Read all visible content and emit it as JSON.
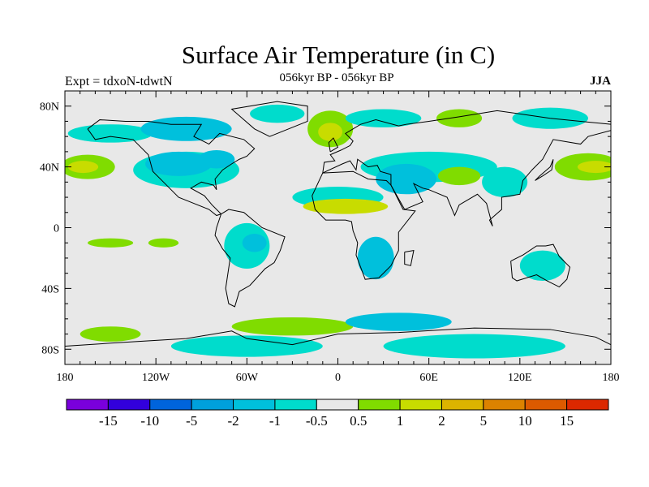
{
  "title": "Surface Air Temperature (in C)",
  "subtitle": "056kyr BP - 056kyr BP",
  "experiment": "Expt = tdxoN-tdwtN",
  "season": "JJA",
  "axes": {
    "lat_ticks": [
      {
        "v": 80,
        "label": "80N"
      },
      {
        "v": 40,
        "label": "40N"
      },
      {
        "v": 0,
        "label": "0"
      },
      {
        "v": -40,
        "label": "40S"
      },
      {
        "v": -80,
        "label": "80S"
      }
    ],
    "lon_ticks": [
      {
        "v": -180,
        "label": "180"
      },
      {
        "v": -120,
        "label": "120W"
      },
      {
        "v": -60,
        "label": "60W"
      },
      {
        "v": 0,
        "label": "0"
      },
      {
        "v": 60,
        "label": "60E"
      },
      {
        "v": 120,
        "label": "120E"
      },
      {
        "v": 180,
        "label": "180"
      }
    ]
  },
  "colorbar": {
    "labels": [
      "-15",
      "-10",
      "-5",
      "-2",
      "-1",
      "-0.5",
      "0.5",
      "1",
      "2",
      "5",
      "10",
      "15"
    ],
    "colors": [
      "#7a00dc",
      "#3200dc",
      "#0064dc",
      "#00a0dc",
      "#00c0dc",
      "#00dccc",
      "#e8e8e8",
      "#80dc00",
      "#c8dc00",
      "#dcb400",
      "#dc8200",
      "#dc5a00",
      "#dc2800"
    ]
  },
  "map_background": "#e8e8e8",
  "regions": [
    {
      "lon": -100,
      "lat": 38,
      "rl": 35,
      "rt": 12,
      "c": 5
    },
    {
      "lon": -105,
      "lat": 42,
      "rl": 22,
      "rt": 8,
      "c": 4
    },
    {
      "lon": -80,
      "lat": 45,
      "rl": 12,
      "rt": 6,
      "c": 4
    },
    {
      "lon": -165,
      "lat": 40,
      "rl": 18,
      "rt": 8,
      "c": 7
    },
    {
      "lon": -168,
      "lat": 40,
      "rl": 10,
      "rt": 4,
      "c": 8
    },
    {
      "lon": 165,
      "lat": 40,
      "rl": 22,
      "rt": 9,
      "c": 7
    },
    {
      "lon": 170,
      "lat": 40,
      "rl": 12,
      "rt": 4,
      "c": 8
    },
    {
      "lon": -150,
      "lat": 62,
      "rl": 28,
      "rt": 6,
      "c": 5
    },
    {
      "lon": -100,
      "lat": 65,
      "rl": 30,
      "rt": 8,
      "c": 4
    },
    {
      "lon": -40,
      "lat": 75,
      "rl": 18,
      "rt": 6,
      "c": 5
    },
    {
      "lon": -5,
      "lat": 65,
      "rl": 15,
      "rt": 12,
      "c": 7
    },
    {
      "lon": -5,
      "lat": 63,
      "rl": 8,
      "rt": 6,
      "c": 8
    },
    {
      "lon": 30,
      "lat": 72,
      "rl": 25,
      "rt": 6,
      "c": 5
    },
    {
      "lon": 80,
      "lat": 72,
      "rl": 15,
      "rt": 6,
      "c": 7
    },
    {
      "lon": 140,
      "lat": 72,
      "rl": 25,
      "rt": 7,
      "c": 5
    },
    {
      "lon": 60,
      "lat": 40,
      "rl": 45,
      "rt": 10,
      "c": 5
    },
    {
      "lon": 45,
      "lat": 32,
      "rl": 20,
      "rt": 10,
      "c": 4
    },
    {
      "lon": 80,
      "lat": 34,
      "rl": 14,
      "rt": 6,
      "c": 7
    },
    {
      "lon": 0,
      "lat": 20,
      "rl": 30,
      "rt": 7,
      "c": 5
    },
    {
      "lon": 5,
      "lat": 14,
      "rl": 28,
      "rt": 5,
      "c": 8
    },
    {
      "lon": 110,
      "lat": 30,
      "rl": 15,
      "rt": 10,
      "c": 5
    },
    {
      "lon": -60,
      "lat": -12,
      "rl": 15,
      "rt": 15,
      "c": 5
    },
    {
      "lon": -55,
      "lat": -10,
      "rl": 8,
      "rt": 6,
      "c": 4
    },
    {
      "lon": 25,
      "lat": -20,
      "rl": 12,
      "rt": 14,
      "c": 4
    },
    {
      "lon": 135,
      "lat": -25,
      "rl": 15,
      "rt": 10,
      "c": 5
    },
    {
      "lon": -30,
      "lat": -65,
      "rl": 40,
      "rt": 6,
      "c": 7
    },
    {
      "lon": 40,
      "lat": -62,
      "rl": 35,
      "rt": 6,
      "c": 4
    },
    {
      "lon": -60,
      "lat": -78,
      "rl": 50,
      "rt": 7,
      "c": 5
    },
    {
      "lon": 90,
      "lat": -78,
      "rl": 60,
      "rt": 8,
      "c": 5
    },
    {
      "lon": -150,
      "lat": -70,
      "rl": 20,
      "rt": 5,
      "c": 7
    },
    {
      "lon": -150,
      "lat": -10,
      "rl": 15,
      "rt": 3,
      "c": 7
    },
    {
      "lon": -115,
      "lat": -10,
      "rl": 10,
      "rt": 3,
      "c": 7
    }
  ]
}
